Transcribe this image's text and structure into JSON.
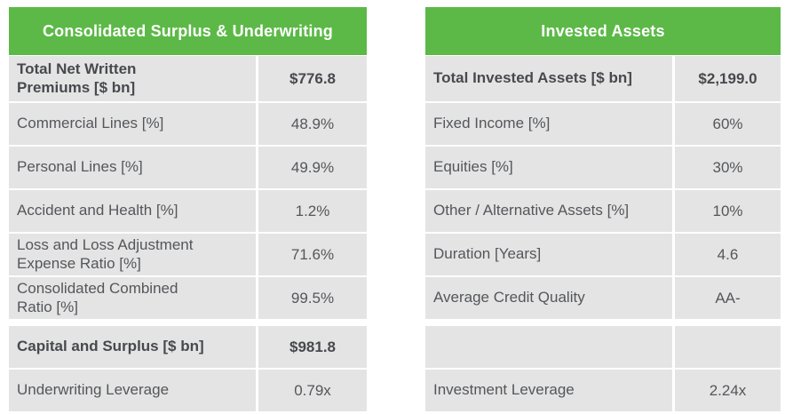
{
  "styles": {
    "accent_green": "#5cb947",
    "row_background": "#e4e4e4",
    "text_color": "#54565a",
    "bold_text_color": "#47494d",
    "header_text_color": "#ffffff"
  },
  "chart_data": [
    {
      "type": "table",
      "title": "Consolidated Surplus & Underwriting",
      "rows": [
        {
          "label": "Total Net Written\nPremiums [$ bn]",
          "value": "$776.8",
          "bold": true
        },
        {
          "label": "Commercial Lines [%]",
          "value": "48.9%",
          "bold": false
        },
        {
          "label": "Personal Lines [%]",
          "value": "49.9%",
          "bold": false
        },
        {
          "label": "Accident and Health [%]",
          "value": "1.2%",
          "bold": false
        },
        {
          "label": "Loss and Loss Adjustment\nExpense Ratio [%]",
          "value": "71.6%",
          "bold": false
        },
        {
          "label": "Consolidated Combined\nRatio [%]",
          "value": "99.5%",
          "bold": false
        },
        {
          "label": "Capital and Surplus [$ bn]",
          "value": "$981.8",
          "bold": true
        },
        {
          "label": "Underwriting Leverage",
          "value": "0.79x",
          "bold": false
        }
      ]
    },
    {
      "type": "table",
      "title": "Invested Assets",
      "rows": [
        {
          "label": "Total Invested Assets [$ bn]",
          "value": "$2,199.0",
          "bold": true
        },
        {
          "label": "Fixed Income [%]",
          "value": "60%",
          "bold": false
        },
        {
          "label": "Equities [%]",
          "value": "30%",
          "bold": false
        },
        {
          "label": "Other / Alternative Assets [%]",
          "value": "10%",
          "bold": false
        },
        {
          "label": "Duration [Years]",
          "value": "4.6",
          "bold": false
        },
        {
          "label": "Average Credit Quality",
          "value": "AA-",
          "bold": false
        },
        {
          "label": "",
          "value": "",
          "bold": false,
          "empty": true
        },
        {
          "label": "Investment Leverage",
          "value": "2.24x",
          "bold": false
        }
      ]
    }
  ]
}
